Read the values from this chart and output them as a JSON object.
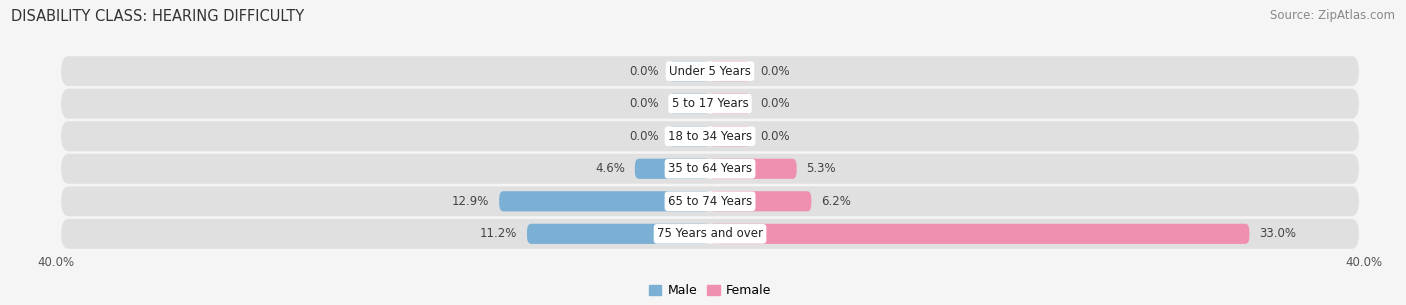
{
  "title": "DISABILITY CLASS: HEARING DIFFICULTY",
  "source": "Source: ZipAtlas.com",
  "categories": [
    "Under 5 Years",
    "5 to 17 Years",
    "18 to 34 Years",
    "35 to 64 Years",
    "65 to 74 Years",
    "75 Years and over"
  ],
  "male_values": [
    0.0,
    0.0,
    0.0,
    4.6,
    12.9,
    11.2
  ],
  "female_values": [
    0.0,
    0.0,
    0.0,
    5.3,
    6.2,
    33.0
  ],
  "male_color": "#7bafd4",
  "female_color": "#f090b0",
  "bg_color": "#f5f5f5",
  "row_bg_color": "#e0e0e0",
  "axis_max": 40.0,
  "title_fontsize": 10.5,
  "source_fontsize": 8.5,
  "label_fontsize": 8.5,
  "value_fontsize": 8.5,
  "tick_fontsize": 8.5,
  "legend_fontsize": 9,
  "bar_height": 0.62,
  "min_bar_width": 2.5
}
